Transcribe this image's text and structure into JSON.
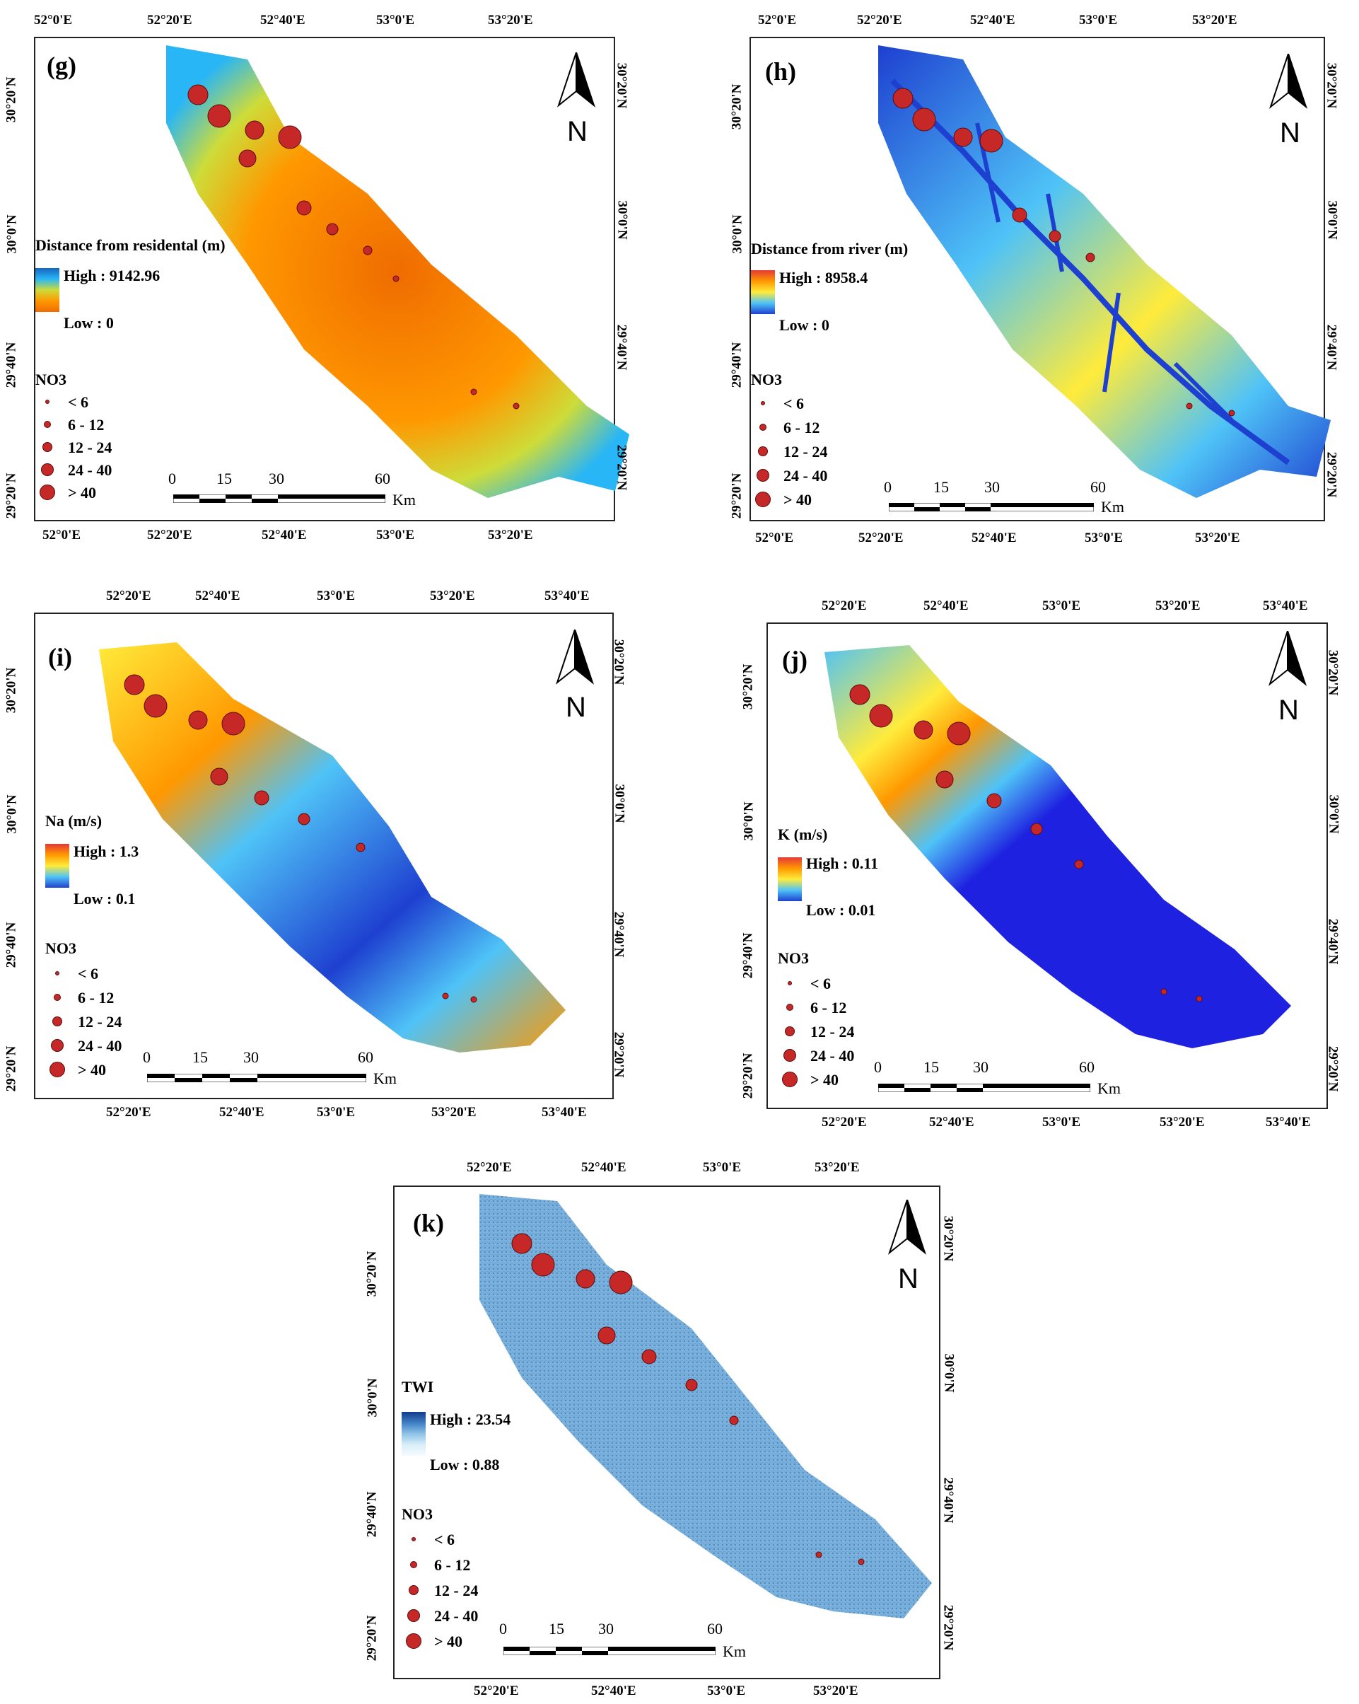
{
  "colors": {
    "no3_dot": "#c62828",
    "no3_dot_border": "#5a0d0d",
    "frame": "#222222"
  },
  "no3_legend": {
    "title": "NO3",
    "classes": [
      "< 6",
      "6 - 12",
      "12 - 24",
      "24 - 40",
      "> 40"
    ]
  },
  "scale_bar": {
    "ticks": [
      "0",
      "15",
      "30",
      "60"
    ],
    "unit": "Km"
  },
  "north_arrow": {
    "letter": "N",
    "icon": "north-arrow-icon"
  },
  "panels": [
    {
      "id": "g",
      "label": "(g)",
      "layer_title": "Distance from residental (m)",
      "high": "High : 9142.96",
      "low": "Low : 0",
      "ramp": [
        "#1565c0",
        "#29b6f6",
        "#cddc39",
        "#ff9800",
        "#ef6c00"
      ],
      "top_ticks": [
        "52°0'E",
        "52°20'E",
        "52°40'E",
        "53°0'E",
        "53°20'E"
      ],
      "bottom_ticks": [
        "52°0'E",
        "52°20'E",
        "52°40'E",
        "53°0'E",
        "53°20'E"
      ],
      "left_ticks": [
        "30°20'N",
        "30°0'N",
        "29°40'N",
        "29°20'N"
      ],
      "right_ticks": [
        "30°20'N",
        "30°0'N",
        "29°40'N",
        "29°20'N"
      ]
    },
    {
      "id": "h",
      "label": "(h)",
      "layer_title": "Distance from river (m)",
      "high": "High : 8958.4",
      "low": "Low : 0",
      "ramp": [
        "#e53935",
        "#ff9800",
        "#ffeb3b",
        "#4fc3f7",
        "#1e40d0"
      ],
      "top_ticks": [
        "52°0'E",
        "52°20'E",
        "52°40'E",
        "53°0'E",
        "53°20'E"
      ],
      "bottom_ticks": [
        "52°0'E",
        "52°20'E",
        "52°40'E",
        "53°0'E",
        "53°20'E"
      ],
      "left_ticks": [
        "30°20'N",
        "30°0'N",
        "29°40'N",
        "29°20'N"
      ],
      "right_ticks": [
        "30°20'N",
        "30°0'N",
        "29°40'N",
        "29°20'N"
      ]
    },
    {
      "id": "i",
      "label": "(i)",
      "layer_title": "Na (m/s)",
      "high": "High : 1.3",
      "low": "Low : 0.1",
      "ramp": [
        "#e53935",
        "#ff9800",
        "#ffeb3b",
        "#4fc3f7",
        "#1e40d0"
      ],
      "top_ticks": [
        "52°20'E",
        "52°40'E",
        "53°0'E",
        "53°20'E",
        "53°40'E"
      ],
      "bottom_ticks": [
        "52°20'E",
        "52°40'E",
        "53°0'E",
        "53°20'E",
        "53°40'E"
      ],
      "left_ticks": [
        "30°20'N",
        "30°0'N",
        "29°40'N",
        "29°20'N"
      ],
      "right_ticks": [
        "30°20'N",
        "30°0'N",
        "29°40'N",
        "29°20'N"
      ]
    },
    {
      "id": "j",
      "label": "(j)",
      "layer_title": "K (m/s)",
      "high": "High : 0.11",
      "low": "Low : 0.01",
      "ramp": [
        "#e53935",
        "#ff9800",
        "#ffeb3b",
        "#4fc3f7",
        "#1e40d0"
      ],
      "top_ticks": [
        "52°20'E",
        "52°40'E",
        "53°0'E",
        "53°20'E",
        "53°40'E"
      ],
      "bottom_ticks": [
        "52°20'E",
        "52°40'E",
        "53°0'E",
        "53°20'E",
        "53°40'E"
      ],
      "left_ticks": [
        "30°20'N",
        "30°0'N",
        "29°40'N",
        "29°20'N"
      ],
      "right_ticks": [
        "30°20'N",
        "30°0'N",
        "29°40'N",
        "29°20'N"
      ]
    },
    {
      "id": "k",
      "label": "(k)",
      "layer_title": "TWI",
      "high": "High : 23.54",
      "low": "Low : 0.88",
      "ramp": [
        "#123b8a",
        "#3f7fc6",
        "#8ec3e6",
        "#d9eef8",
        "#f5fbff"
      ],
      "top_ticks": [
        "52°20'E",
        "52°40'E",
        "53°0'E",
        "53°20'E"
      ],
      "bottom_ticks": [
        "52°20'E",
        "52°40'E",
        "53°0'E",
        "53°20'E"
      ],
      "left_ticks": [
        "30°20'N",
        "30°0'N",
        "29°40'N",
        "29°20'N"
      ],
      "right_ticks": [
        "30°20'N",
        "30°0'N",
        "29°40'N",
        "29°20'N"
      ]
    }
  ]
}
